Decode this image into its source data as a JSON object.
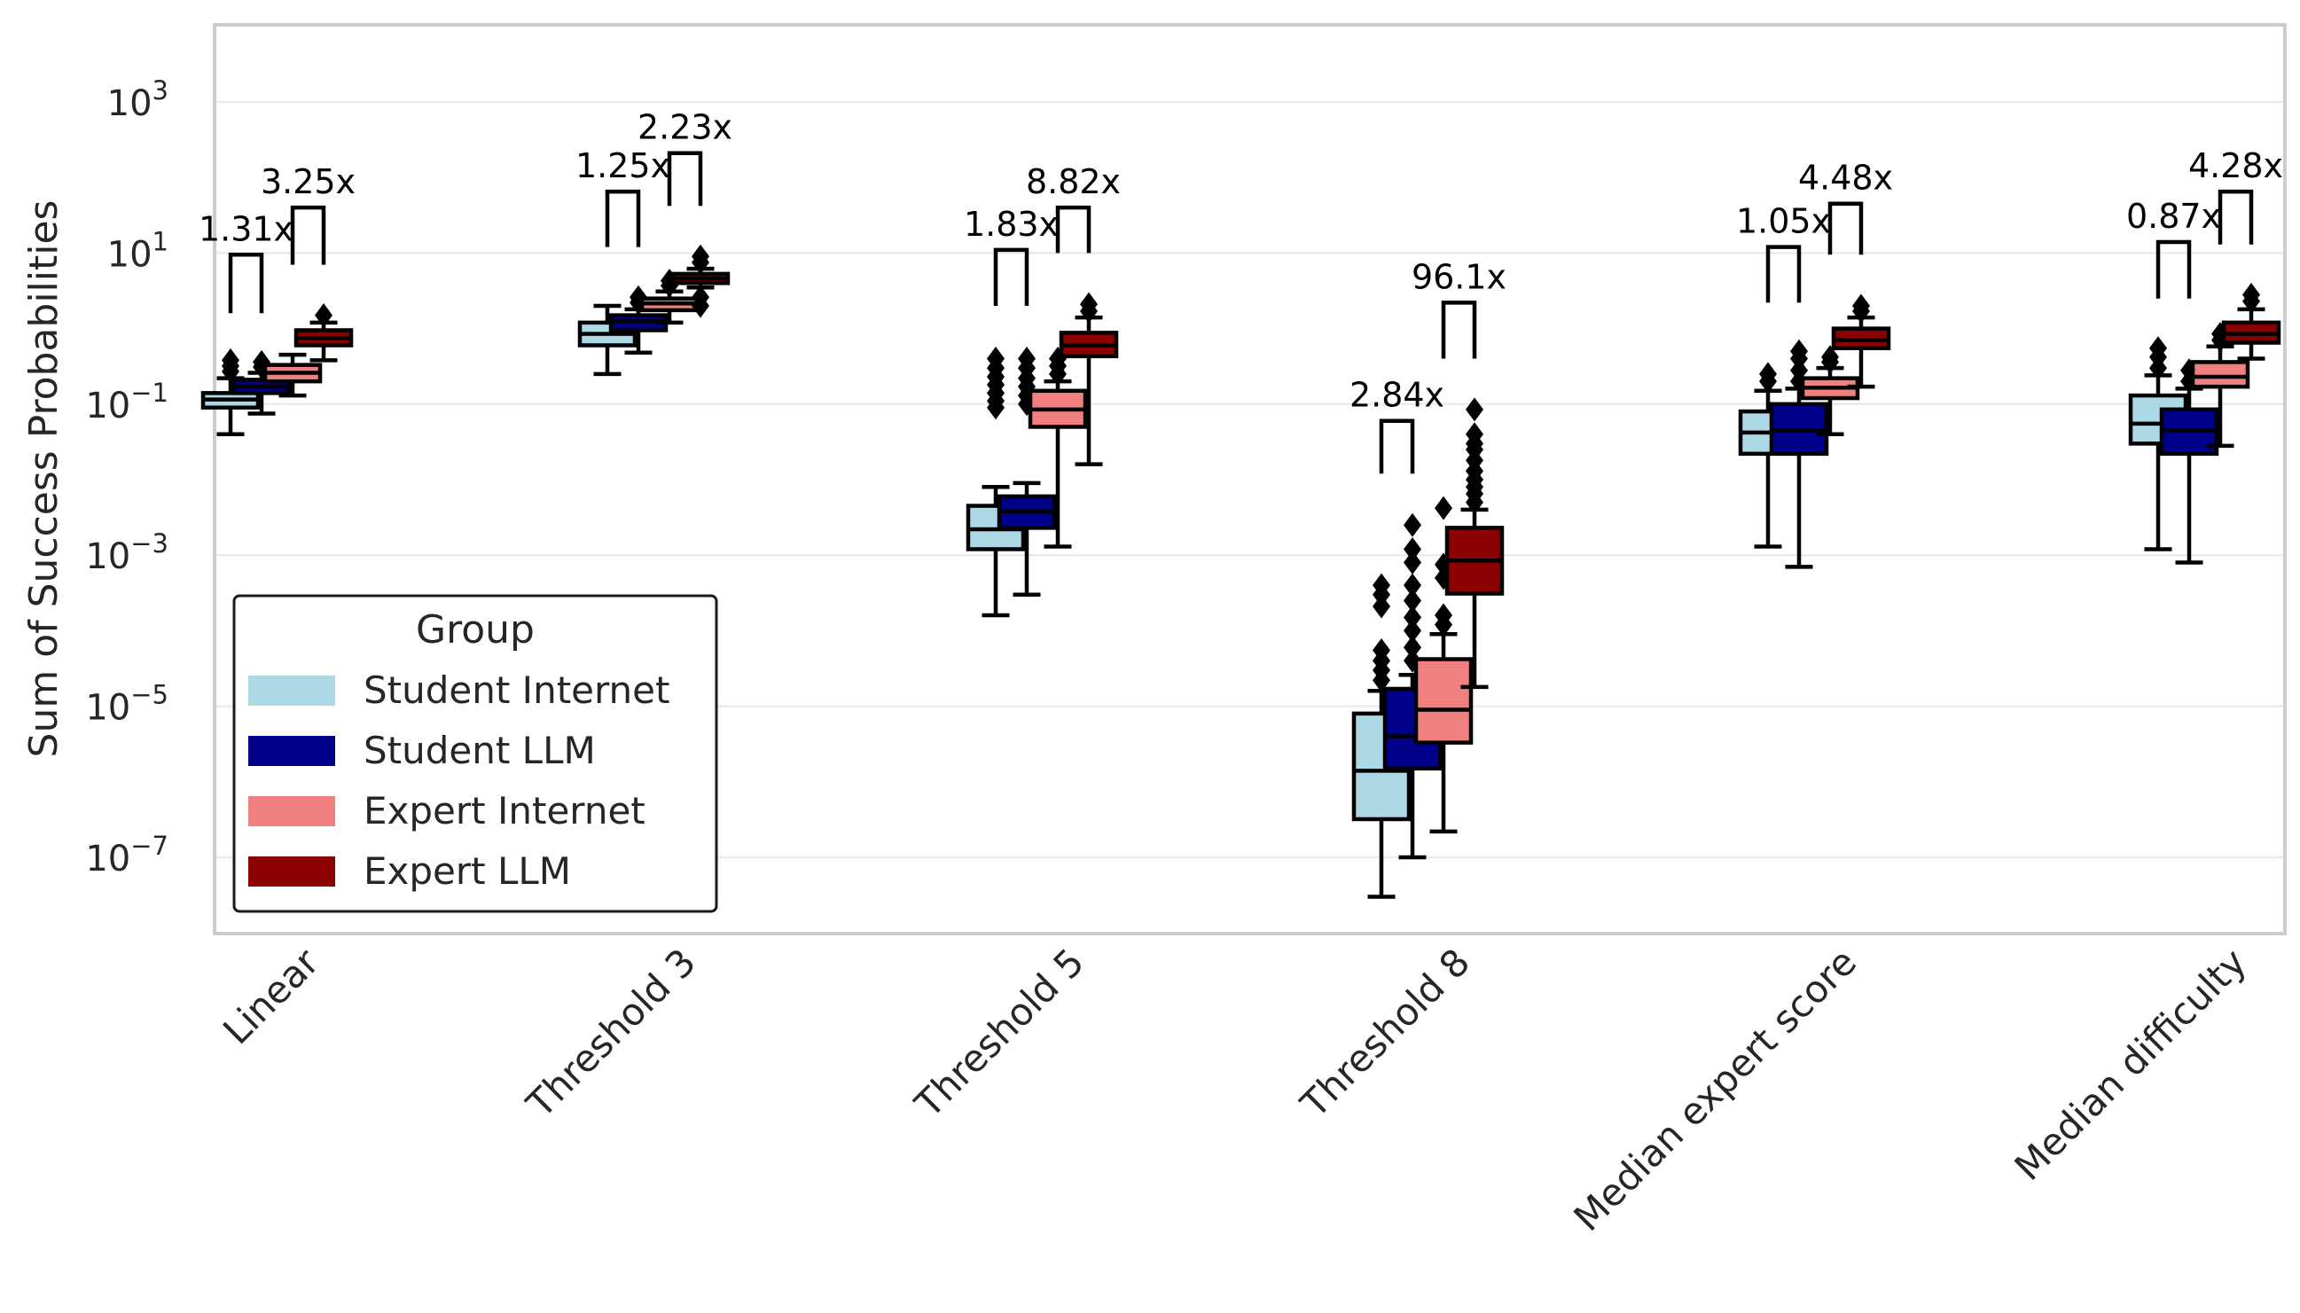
{
  "chart_data": {
    "type": "box",
    "title": "",
    "xlabel": "",
    "ylabel": "Sum of Success Probabilities",
    "yscale": "log",
    "ylim_log10": [
      -8.0,
      4.0
    ],
    "yticks_log10": [
      -7,
      -5,
      -3,
      -1,
      1,
      3
    ],
    "ytick_labels": [
      {
        "base": "10",
        "exp": "−7"
      },
      {
        "base": "10",
        "exp": "−5"
      },
      {
        "base": "10",
        "exp": "−3"
      },
      {
        "base": "10",
        "exp": "−1"
      },
      {
        "base": "10",
        "exp": "1"
      },
      {
        "base": "10",
        "exp": "3"
      }
    ],
    "categories": [
      "Linear",
      "Threshold 3",
      "Threshold 5",
      "Threshold 8",
      "Median expert score",
      "Median difficulty"
    ],
    "legend": {
      "title": "Group",
      "placement": "lower-left",
      "entries": [
        {
          "name": "Student Internet",
          "color": "#add8e6"
        },
        {
          "name": "Student LLM",
          "color": "#00008b"
        },
        {
          "name": "Expert Internet",
          "color": "#f08080"
        },
        {
          "name": "Expert LLM",
          "color": "#8b0000"
        }
      ]
    },
    "series": [
      {
        "name": "Student Internet",
        "color": "#add8e6",
        "boxes": [
          {
            "whislo": 0.04,
            "q1": 0.09,
            "med": 0.115,
            "q3": 0.14,
            "whishi": 0.22,
            "fliers": [
              0.27,
              0.32,
              0.38
            ]
          },
          {
            "whislo": 0.25,
            "q1": 0.6,
            "med": 0.85,
            "q3": 1.2,
            "whishi": 2.0,
            "fliers": []
          },
          {
            "whislo": 0.00016,
            "q1": 0.0012,
            "med": 0.0022,
            "q3": 0.0045,
            "whishi": 0.008,
            "fliers": [
              0.09,
              0.11,
              0.14,
              0.18,
              0.23,
              0.3,
              0.4
            ]
          },
          {
            "whislo": 3e-08,
            "q1": 3.2e-07,
            "med": 1.4e-06,
            "q3": 8e-06,
            "whishi": 1.6e-05,
            "fliers": [
              2.2e-05,
              3e-05,
              4e-05,
              5.5e-05,
              0.00021,
              0.0003,
              0.0004
            ]
          },
          {
            "whislo": 0.0013,
            "q1": 0.022,
            "med": 0.042,
            "q3": 0.08,
            "whishi": 0.15,
            "fliers": [
              0.2,
              0.25
            ]
          },
          {
            "whislo": 0.0012,
            "q1": 0.03,
            "med": 0.055,
            "q3": 0.13,
            "whishi": 0.24,
            "fliers": [
              0.3,
              0.42,
              0.55
            ]
          }
        ]
      },
      {
        "name": "Student LLM",
        "color": "#00008b",
        "boxes": [
          {
            "whislo": 0.075,
            "q1": 0.14,
            "med": 0.17,
            "q3": 0.21,
            "whishi": 0.26,
            "fliers": [
              0.31,
              0.36
            ]
          },
          {
            "whislo": 0.48,
            "q1": 0.95,
            "med": 1.25,
            "q3": 1.5,
            "whishi": 1.8,
            "fliers": [
              2.2,
              2.6
            ]
          },
          {
            "whislo": 0.0003,
            "q1": 0.0023,
            "med": 0.0038,
            "q3": 0.006,
            "whishi": 0.009,
            "fliers": [
              0.1,
              0.13,
              0.17,
              0.22,
              0.3,
              0.4
            ]
          },
          {
            "whislo": 1e-07,
            "q1": 1.5e-06,
            "med": 4e-06,
            "q3": 1.7e-05,
            "whishi": 2.6e-05,
            "fliers": [
              4e-05,
              6e-05,
              0.0001,
              0.00015,
              0.00025,
              0.0004,
              0.0008,
              0.0012,
              0.0025
            ]
          },
          {
            "whislo": 0.0007,
            "q1": 0.022,
            "med": 0.045,
            "q3": 0.1,
            "whishi": 0.16,
            "fliers": [
              0.2,
              0.28,
              0.4,
              0.5
            ]
          },
          {
            "whislo": 0.0008,
            "q1": 0.022,
            "med": 0.045,
            "q3": 0.085,
            "whishi": 0.16,
            "fliers": [
              0.2,
              0.28
            ]
          }
        ]
      },
      {
        "name": "Expert Internet",
        "color": "#f08080",
        "boxes": [
          {
            "whislo": 0.13,
            "q1": 0.2,
            "med": 0.26,
            "q3": 0.33,
            "whishi": 0.45,
            "fliers": []
          },
          {
            "whislo": 1.2,
            "q1": 1.75,
            "med": 2.15,
            "q3": 2.5,
            "whishi": 3.1,
            "fliers": [
              3.7,
              4.3
            ]
          },
          {
            "whislo": 0.0013,
            "q1": 0.05,
            "med": 0.085,
            "q3": 0.15,
            "whishi": 0.2,
            "fliers": [
              0.25,
              0.32,
              0.4
            ]
          },
          {
            "whislo": 2.2e-07,
            "q1": 3.3e-06,
            "med": 9e-06,
            "q3": 4.2e-05,
            "whishi": 9e-05,
            "fliers": [
              0.00012,
              0.00016,
              0.0005,
              0.00075,
              0.0042
            ]
          },
          {
            "whislo": 0.04,
            "q1": 0.12,
            "med": 0.165,
            "q3": 0.22,
            "whishi": 0.3,
            "fliers": [
              0.36,
              0.42
            ]
          },
          {
            "whislo": 0.028,
            "q1": 0.17,
            "med": 0.23,
            "q3": 0.36,
            "whishi": 0.58,
            "fliers": [
              0.7,
              0.85
            ]
          }
        ]
      },
      {
        "name": "Expert LLM",
        "color": "#8b0000",
        "boxes": [
          {
            "whislo": 0.38,
            "q1": 0.6,
            "med": 0.75,
            "q3": 0.95,
            "whishi": 1.2,
            "fliers": [
              1.5
            ]
          },
          {
            "whislo": 3.5,
            "q1": 4.0,
            "med": 4.6,
            "q3": 5.3,
            "whishi": 6.2,
            "fliers": [
              2.0,
              2.6,
              7.5,
              9.0
            ]
          },
          {
            "whislo": 0.016,
            "q1": 0.43,
            "med": 0.6,
            "q3": 0.88,
            "whishi": 1.4,
            "fliers": [
              1.7,
              2.1
            ]
          },
          {
            "whislo": 1.8e-05,
            "q1": 0.00031,
            "med": 0.00085,
            "q3": 0.0023,
            "whishi": 0.004,
            "fliers": [
              0.005,
              0.0065,
              0.008,
              0.01,
              0.013,
              0.018,
              0.025,
              0.03,
              0.04,
              0.085
            ]
          },
          {
            "whislo": 0.17,
            "q1": 0.55,
            "med": 0.7,
            "q3": 1.0,
            "whishi": 1.4,
            "fliers": [
              1.7,
              2.0
            ]
          },
          {
            "whislo": 0.4,
            "q1": 0.65,
            "med": 0.85,
            "q3": 1.2,
            "whishi": 1.8,
            "fliers": [
              2.3,
              2.8
            ]
          }
        ]
      }
    ],
    "annotations": [
      {
        "category": 0,
        "pair": "student",
        "label": "1.31x",
        "bracket_top": 9.5,
        "bracket_bottom": 1.6
      },
      {
        "category": 0,
        "pair": "expert",
        "label": "3.25x",
        "bracket_top": 40,
        "bracket_bottom": 7
      },
      {
        "category": 1,
        "pair": "student",
        "label": "1.25x",
        "bracket_top": 65,
        "bracket_bottom": 12
      },
      {
        "category": 1,
        "pair": "expert",
        "label": "2.23x",
        "bracket_top": 210,
        "bracket_bottom": 42
      },
      {
        "category": 2,
        "pair": "student",
        "label": "1.83x",
        "bracket_top": 11,
        "bracket_bottom": 2.0
      },
      {
        "category": 2,
        "pair": "expert",
        "label": "8.82x",
        "bracket_top": 40,
        "bracket_bottom": 10
      },
      {
        "category": 3,
        "pair": "student",
        "label": "2.84x",
        "bracket_top": 0.06,
        "bracket_bottom": 0.012
      },
      {
        "category": 3,
        "pair": "expert",
        "label": "96.1x",
        "bracket_top": 2.2,
        "bracket_bottom": 0.4
      },
      {
        "category": 4,
        "pair": "student",
        "label": "1.05x",
        "bracket_top": 12,
        "bracket_bottom": 2.2
      },
      {
        "category": 4,
        "pair": "expert",
        "label": "4.48x",
        "bracket_top": 45,
        "bracket_bottom": 9.5
      },
      {
        "category": 5,
        "pair": "student",
        "label": "0.87x",
        "bracket_top": 14,
        "bracket_bottom": 2.5
      },
      {
        "category": 5,
        "pair": "expert",
        "label": "4.28x",
        "bracket_top": 65,
        "bracket_bottom": 13
      }
    ]
  }
}
